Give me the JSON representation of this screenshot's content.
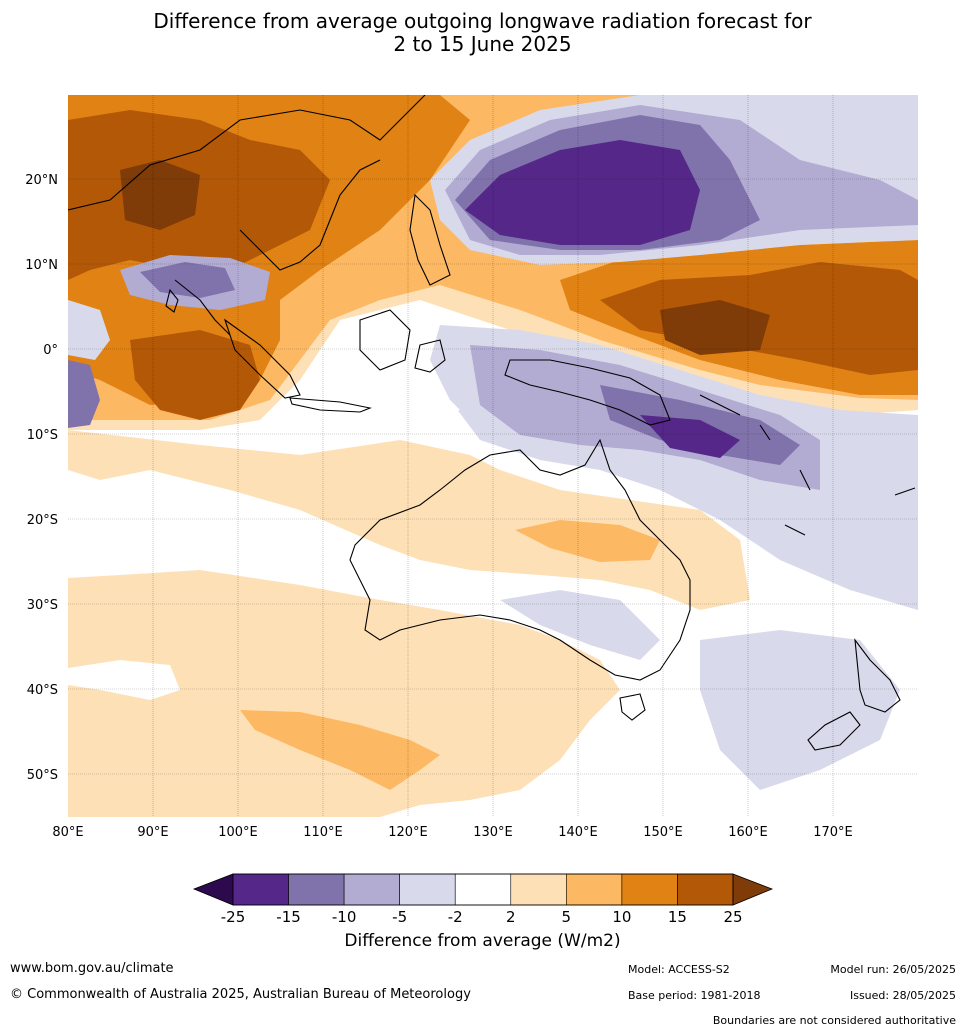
{
  "title_line1": "Difference from average outgoing longwave radiation forecast for",
  "title_line2": "2 to 15 June 2025",
  "map": {
    "lon_labels": [
      "80°E",
      "90°E",
      "100°E",
      "110°E",
      "120°E",
      "130°E",
      "140°E",
      "150°E",
      "160°E",
      "170°E"
    ],
    "lat_labels": [
      "20°N",
      "10°N",
      "0°",
      "10°S",
      "20°S",
      "30°S",
      "40°S",
      "50°S"
    ]
  },
  "colorbar": {
    "title": "Difference from average (W/m2)",
    "tick_labels": [
      "-25",
      "-15",
      "-10",
      "-5",
      "-2",
      "2",
      "5",
      "10",
      "15",
      "25"
    ],
    "colors": {
      "below_min": "#2d0a4e",
      "bins": [
        "#542788",
        "#8073ac",
        "#b2abd2",
        "#d8daeb",
        "#ffffff",
        "#fee0b6",
        "#fdb863",
        "#e08214",
        "#b35806"
      ],
      "above_max": "#7f3b08"
    }
  },
  "footer": {
    "website": "www.bom.gov.au/climate",
    "copyright": "© Commonwealth of Australia 2025, Australian Bureau of Meteorology",
    "model": "Model: ACCESS-S2",
    "base_period": "Base period: 1981-2018",
    "model_run": "Model run: 26/05/2025",
    "issued": "Issued: 28/05/2025",
    "disclaimer": "Boundaries are not considered authoritative"
  }
}
